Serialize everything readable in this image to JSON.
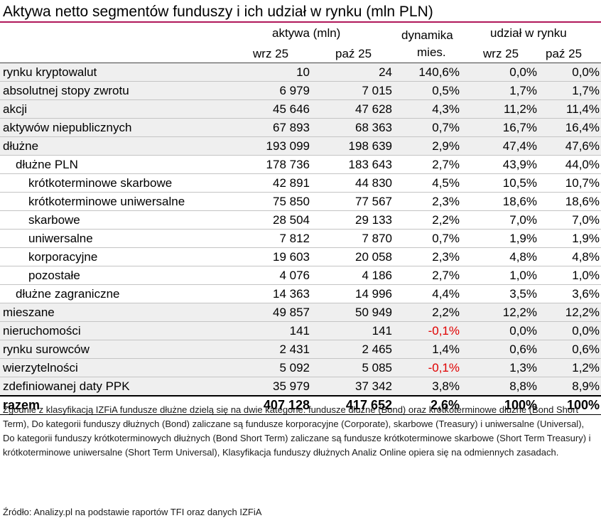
{
  "title": "Aktywa netto segmentów funduszy i ich udział w rynku (mln PLN)",
  "header": {
    "group_assets": "aktywa (mln)",
    "group_dyn_line1": "dynamika",
    "group_dyn_line2": "mies.",
    "group_share": "udział w rynku",
    "col_assets_prev": "wrz 25",
    "col_assets_curr": "paź 25",
    "col_share_prev": "wrz 25",
    "col_share_curr": "paź 25"
  },
  "rows": [
    {
      "name": "rynku kryptowalut",
      "a1": "10",
      "a2": "24",
      "dyn": "140,6%",
      "s1": "0,0%",
      "s2": "0,0%"
    },
    {
      "name": "absolutnej stopy zwrotu",
      "a1": "6 979",
      "a2": "7 015",
      "dyn": "0,5%",
      "s1": "1,7%",
      "s2": "1,7%"
    },
    {
      "name": "akcji",
      "a1": "45 646",
      "a2": "47 628",
      "dyn": "4,3%",
      "s1": "11,2%",
      "s2": "11,4%"
    },
    {
      "name": "aktywów niepublicznych",
      "a1": "67 893",
      "a2": "68 363",
      "dyn": "0,7%",
      "s1": "16,7%",
      "s2": "16,4%"
    },
    {
      "name": "dłużne",
      "a1": "193 099",
      "a2": "198 639",
      "dyn": "2,9%",
      "s1": "47,4%",
      "s2": "47,6%"
    },
    {
      "name": "dłużne PLN",
      "a1": "178 736",
      "a2": "183 643",
      "dyn": "2,7%",
      "s1": "43,9%",
      "s2": "44,0%"
    },
    {
      "name": "krótkoterminowe skarbowe",
      "a1": "42 891",
      "a2": "44 830",
      "dyn": "4,5%",
      "s1": "10,5%",
      "s2": "10,7%"
    },
    {
      "name": "krótkoterminowe uniwersalne",
      "a1": "75 850",
      "a2": "77 567",
      "dyn": "2,3%",
      "s1": "18,6%",
      "s2": "18,6%"
    },
    {
      "name": "skarbowe",
      "a1": "28 504",
      "a2": "29 133",
      "dyn": "2,2%",
      "s1": "7,0%",
      "s2": "7,0%"
    },
    {
      "name": "uniwersalne",
      "a1": "7 812",
      "a2": "7 870",
      "dyn": "0,7%",
      "s1": "1,9%",
      "s2": "1,9%"
    },
    {
      "name": "korporacyjne",
      "a1": "19 603",
      "a2": "20 058",
      "dyn": "2,3%",
      "s1": "4,8%",
      "s2": "4,8%"
    },
    {
      "name": "pozostałe",
      "a1": "4 076",
      "a2": "4 186",
      "dyn": "2,7%",
      "s1": "1,0%",
      "s2": "1,0%"
    },
    {
      "name": "dłużne zagraniczne",
      "a1": "14 363",
      "a2": "14 996",
      "dyn": "4,4%",
      "s1": "3,5%",
      "s2": "3,6%"
    },
    {
      "name": "mieszane",
      "a1": "49 857",
      "a2": "50 949",
      "dyn": "2,2%",
      "s1": "12,2%",
      "s2": "12,2%"
    },
    {
      "name": "nieruchomości",
      "a1": "141",
      "a2": "141",
      "dyn": "-0,1%",
      "s1": "0,0%",
      "s2": "0,0%"
    },
    {
      "name": "rynku surowców",
      "a1": "2 431",
      "a2": "2 465",
      "dyn": "1,4%",
      "s1": "0,6%",
      "s2": "0,6%"
    },
    {
      "name": "wierzytelności",
      "a1": "5 092",
      "a2": "5 085",
      "dyn": "-0,1%",
      "s1": "1,3%",
      "s2": "1,2%"
    },
    {
      "name": "zdefiniowanej daty PPK",
      "a1": "35 979",
      "a2": "37 342",
      "dyn": "3,8%",
      "s1": "8,8%",
      "s2": "8,9%"
    }
  ],
  "total": {
    "name": "razem",
    "a1": "407 128",
    "a2": "417 652",
    "dyn": "2,6%",
    "s1": "100%",
    "s2": "100%"
  },
  "note": "Zgodnie z klasyfikacją IZFiA fundusze dłużne dzielą się na dwie kategorie: fundusze dłużne (Bond) oraz krótkoterminowe dłużne (Bond Short Term), Do kategorii funduszy dłużnych (Bond) zaliczane są fundusze korporacyjne (Corporate), skarbowe (Treasury) i uniwersalne (Universal), Do kategorii funduszy krótkoterminowych dłużnych (Bond Short Term) zaliczane są fundusze krótkoterminowe skarbowe (Short Term Treasury) i krótkoterminowe uniwersalne (Short Term Universal), Klasyfikacja funduszy dłużnych Analiz Online opiera się na odmiennych zasadach.",
  "source": "Źródło: Analizy.pl na podstawie raportów TFI oraz danych IZFiA",
  "colors": {
    "accent_rule": "#b0185a",
    "negative": "#e00000",
    "row_shade": "#efefef"
  }
}
